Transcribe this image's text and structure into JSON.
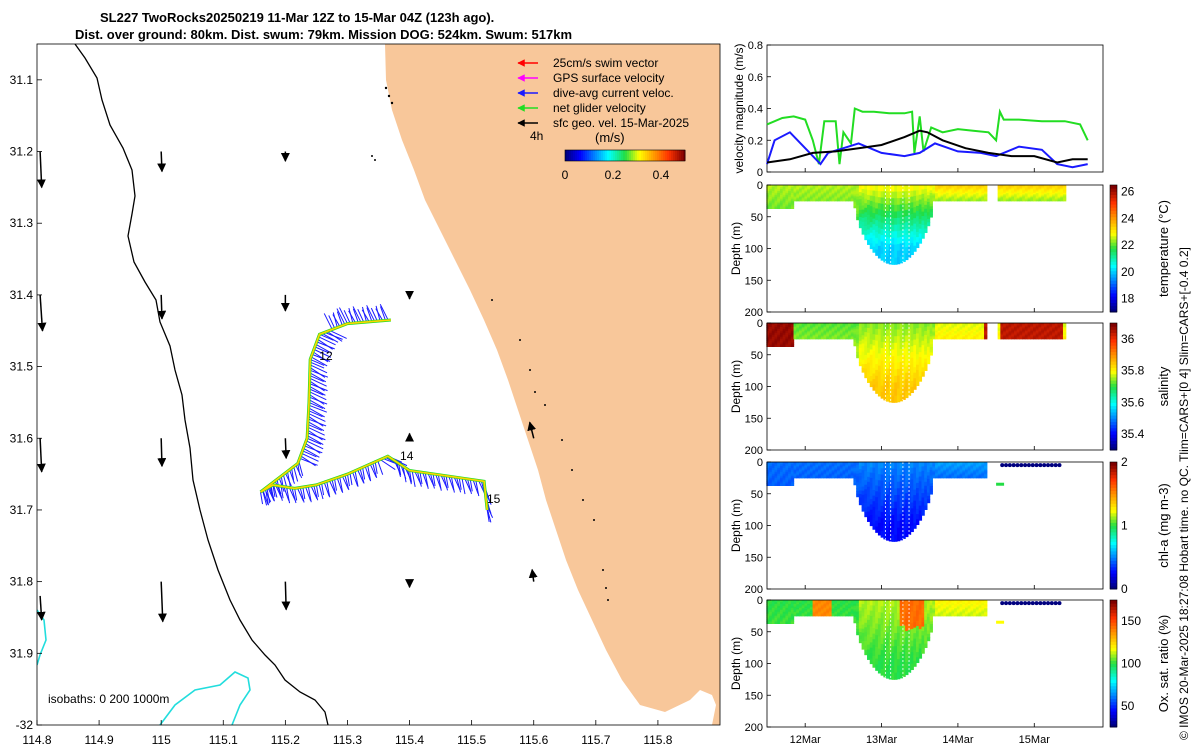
{
  "header": {
    "title_line1": "SL227 TwoRocks20250219 11-Mar 12Z to 15-Mar 04Z (123h ago).",
    "title_line2": "Dist. over ground: 80km. Dist. swum: 79km. Mission DOG: 524km. Swum: 517km"
  },
  "credit": "© IMOS 20-Mar-2025 18:27:08 Hobart time. no QC. Tlim=CARS+[0 4] Slim=CARS+[-0.4 0.2]",
  "colors": {
    "land": "#f8c79a",
    "track": "#ffd400",
    "current": "#1a1aff",
    "net": "#22dd22",
    "black": "#000000",
    "isobath_1000": "#22dddd"
  },
  "chart_data": [
    {
      "type": "map",
      "name": "glider-track-map",
      "xlim": [
        114.8,
        115.9
      ],
      "ylim": [
        31.05,
        32.0
      ],
      "y_reversed": true,
      "xticks": [
        "114.8",
        "114.9",
        "115",
        "115.1",
        "115.2",
        "115.3",
        "115.4",
        "115.5",
        "115.6",
        "115.7",
        "115.8"
      ],
      "yticks": [
        "31.1",
        "31.2",
        "31.3",
        "31.4",
        "31.5",
        "31.6",
        "31.7",
        "31.8",
        "31.9",
        "-32"
      ],
      "legend": [
        {
          "label": "25cm/s swim vector",
          "color": "#ff0000"
        },
        {
          "label": "GPS surface velocity",
          "color": "#ff00ff"
        },
        {
          "label": "dive-avg current veloc.",
          "color": "#1a1aff"
        },
        {
          "label": "net glider velocity",
          "color": "#22dd22"
        },
        {
          "label": "sfc geo. vel. 15-Mar-2025",
          "color": "#000000"
        }
      ],
      "legend_note": "4h",
      "colorbar": {
        "label": "(m/s)",
        "ticks": [
          "0",
          "0.2",
          "0.4"
        ],
        "range": [
          0,
          0.5
        ]
      },
      "isobaths_label": "isobaths: 0   200  1000m",
      "day_labels": [
        {
          "text": "12",
          "lon": 115.245,
          "lat": 31.485
        },
        {
          "text": "14",
          "lon": 115.375,
          "lat": 31.625
        },
        {
          "text": "15",
          "lon": 115.515,
          "lat": 31.685
        }
      ],
      "track": [
        [
          115.525,
          31.7
        ],
        [
          115.52,
          31.66
        ],
        [
          115.48,
          31.655
        ],
        [
          115.4,
          31.645
        ],
        [
          115.365,
          31.625
        ],
        [
          115.3,
          31.65
        ],
        [
          115.25,
          31.665
        ],
        [
          115.215,
          31.67
        ],
        [
          115.18,
          31.665
        ],
        [
          115.16,
          31.675
        ],
        [
          115.22,
          31.635
        ],
        [
          115.235,
          31.6
        ],
        [
          115.238,
          31.55
        ],
        [
          115.24,
          31.49
        ],
        [
          115.255,
          31.455
        ],
        [
          115.3,
          31.44
        ],
        [
          115.37,
          31.435
        ]
      ],
      "geo_vectors": [
        {
          "lon": 114.805,
          "lat": 31.2,
          "u": 0.02,
          "v": -0.45
        },
        {
          "lon": 114.805,
          "lat": 31.4,
          "u": 0.03,
          "v": -0.45
        },
        {
          "lon": 114.805,
          "lat": 31.6,
          "u": 0.02,
          "v": -0.42
        },
        {
          "lon": 114.805,
          "lat": 31.82,
          "u": 0.02,
          "v": -0.3
        },
        {
          "lon": 115.0,
          "lat": 31.2,
          "u": 0.01,
          "v": -0.25
        },
        {
          "lon": 115.0,
          "lat": 31.4,
          "u": 0.01,
          "v": -0.3
        },
        {
          "lon": 115.0,
          "lat": 31.6,
          "u": 0.01,
          "v": -0.35
        },
        {
          "lon": 115.0,
          "lat": 31.8,
          "u": 0.02,
          "v": -0.5
        },
        {
          "lon": 115.2,
          "lat": 31.2,
          "u": 0.0,
          "v": -0.12
        },
        {
          "lon": 115.2,
          "lat": 31.4,
          "u": 0.0,
          "v": -0.2
        },
        {
          "lon": 115.2,
          "lat": 31.6,
          "u": 0.01,
          "v": -0.25
        },
        {
          "lon": 115.2,
          "lat": 31.8,
          "u": 0.01,
          "v": -0.35
        },
        {
          "lon": 115.4,
          "lat": 31.4,
          "u": 0.0,
          "v": -0.05
        },
        {
          "lon": 115.4,
          "lat": 31.6,
          "u": 0.0,
          "v": 0.06
        },
        {
          "lon": 115.4,
          "lat": 31.8,
          "u": 0.0,
          "v": -0.07
        },
        {
          "lon": 115.6,
          "lat": 31.6,
          "u": -0.05,
          "v": 0.2
        },
        {
          "lon": 115.6,
          "lat": 31.8,
          "u": -0.02,
          "v": 0.15
        }
      ]
    },
    {
      "type": "line",
      "name": "velocity-magnitude",
      "ylabel": "velocity magnitude (m/s)",
      "xlim": [
        0,
        4.4
      ],
      "ylim": [
        0,
        0.8
      ],
      "yticks": [
        "0",
        "0.2",
        "0.4",
        "0.6",
        "0.8"
      ],
      "series": [
        {
          "name": "net glider velocity",
          "color": "#22dd22",
          "x": [
            0.0,
            0.2,
            0.35,
            0.5,
            0.6,
            0.68,
            0.75,
            0.9,
            0.95,
            1.0,
            1.1,
            1.15,
            1.25,
            1.4,
            1.6,
            1.8,
            1.9,
            1.93,
            2.0,
            2.05,
            2.15,
            2.3,
            2.5,
            2.7,
            2.9,
            3.0,
            3.05,
            3.1,
            3.3,
            3.6,
            3.9,
            4.1,
            4.2
          ],
          "y": [
            0.3,
            0.34,
            0.35,
            0.33,
            0.2,
            0.05,
            0.32,
            0.32,
            0.05,
            0.25,
            0.18,
            0.4,
            0.38,
            0.38,
            0.37,
            0.37,
            0.38,
            0.12,
            0.35,
            0.13,
            0.28,
            0.25,
            0.27,
            0.26,
            0.25,
            0.2,
            0.38,
            0.33,
            0.33,
            0.32,
            0.32,
            0.3,
            0.2
          ]
        },
        {
          "name": "dive-avg current veloc.",
          "color": "#1a1aff",
          "x": [
            0.0,
            0.1,
            0.3,
            0.5,
            0.7,
            0.8,
            1.0,
            1.2,
            1.5,
            1.8,
            2.0,
            2.2,
            2.5,
            2.8,
            3.0,
            3.3,
            3.6,
            3.8,
            4.0,
            4.2
          ],
          "y": [
            0.05,
            0.2,
            0.25,
            0.15,
            0.05,
            0.12,
            0.15,
            0.18,
            0.12,
            0.1,
            0.12,
            0.18,
            0.13,
            0.12,
            0.1,
            0.16,
            0.14,
            0.05,
            0.03,
            0.05
          ]
        },
        {
          "name": "sfc geo. vel.",
          "color": "#000000",
          "x": [
            0.0,
            0.3,
            0.6,
            0.9,
            1.2,
            1.5,
            1.8,
            2.0,
            2.1,
            2.3,
            2.6,
            2.9,
            3.2,
            3.5,
            3.8,
            4.0,
            4.2
          ],
          "y": [
            0.06,
            0.08,
            0.12,
            0.13,
            0.15,
            0.17,
            0.22,
            0.26,
            0.25,
            0.2,
            0.15,
            0.12,
            0.1,
            0.1,
            0.06,
            0.08,
            0.08
          ]
        }
      ]
    },
    {
      "type": "heatmap",
      "name": "temperature-section",
      "ylabel": "Depth (m)",
      "cbar_label": "temperature (°C)",
      "cbar_ticks": [
        "18",
        "20",
        "22",
        "24",
        "26"
      ],
      "cbar_range": [
        17,
        26.5
      ],
      "ylim": [
        0,
        200
      ],
      "yticks": [
        "0",
        "50",
        "100",
        "150",
        "200"
      ],
      "surface": [
        22.5,
        23.0,
        23.5
      ],
      "deep": [
        21.5,
        20.0,
        18.8
      ],
      "surface_blobs": []
    },
    {
      "type": "heatmap",
      "name": "salinity-section",
      "ylabel": "Depth (m)",
      "cbar_label": "salinity",
      "cbar_ticks": [
        "35.4",
        "35.6",
        "35.8",
        "36"
      ],
      "cbar_range": [
        35.3,
        36.1
      ],
      "ylim": [
        0,
        200
      ],
      "yticks": [
        "0",
        "50",
        "100",
        "150",
        "200"
      ],
      "surface": [
        35.72,
        35.74,
        35.78
      ],
      "deep": [
        35.8,
        35.85,
        35.9
      ],
      "surface_blobs": [
        {
          "x0": 0.0,
          "x1": 0.35,
          "value": 36.08
        },
        {
          "x0": 2.85,
          "x1": 3.0,
          "value": 36.05
        },
        {
          "x0": 3.05,
          "x1": 3.9,
          "value": 36.05
        }
      ]
    },
    {
      "type": "heatmap",
      "name": "chlorophyll-section",
      "ylabel": "Depth (m)",
      "cbar_label": "chl-a (mg m-3)",
      "cbar_ticks": [
        "0",
        "1",
        "2"
      ],
      "cbar_range": [
        0,
        2
      ],
      "ylim": [
        0,
        200
      ],
      "yticks": [
        "0",
        "50",
        "100",
        "150",
        "200"
      ],
      "surface": [
        0.45,
        0.5,
        0.55
      ],
      "deep": [
        0.35,
        0.25,
        0.12
      ],
      "surface_blobs": []
    },
    {
      "type": "heatmap",
      "name": "oxygen-section",
      "ylabel": "Depth (m)",
      "cbar_label": "Ox. sat. ratio (%)",
      "cbar_ticks": [
        "50",
        "100",
        "150"
      ],
      "cbar_range": [
        25,
        175
      ],
      "ylim": [
        0,
        200
      ],
      "yticks": [
        "0",
        "50",
        "100",
        "150",
        "200"
      ],
      "surface": [
        100,
        112,
        120
      ],
      "deep": [
        105,
        100,
        95
      ],
      "surface_blobs": [
        {
          "x0": 0.6,
          "x1": 0.85,
          "value": 140
        },
        {
          "x0": 1.75,
          "x1": 2.05,
          "value": 145
        }
      ]
    }
  ],
  "time_axis": {
    "labels": [
      "12Mar",
      "13Mar",
      "14Mar",
      "15Mar"
    ],
    "day_positions": [
      0.5,
      1.5,
      2.5,
      3.5
    ]
  },
  "section_shape": {
    "start": 0.0,
    "gap_start": 2.88,
    "gap_end": 3.02,
    "end": 3.92,
    "base_depth": 25,
    "bowl_center": 1.67,
    "bowl_halfwidth": 0.52,
    "bowl_depth": 125,
    "late_dots": [
      3.08,
      3.13,
      3.18,
      3.23,
      3.28,
      3.33,
      3.38,
      3.43,
      3.48,
      3.53,
      3.58,
      3.63,
      3.68,
      3.73,
      3.78,
      3.83
    ],
    "late_dot_depth": 5,
    "late_dash_x": 3.0,
    "late_dash_depth": 35
  }
}
